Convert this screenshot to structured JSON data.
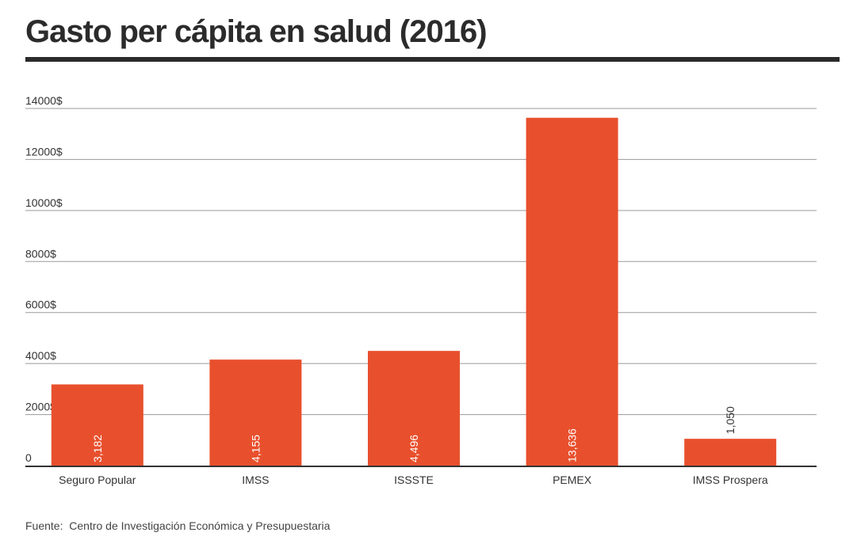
{
  "title": "Gasto per cápita en salud (2016)",
  "source": {
    "label": "Fuente:",
    "text": "Centro de Investigación Económica y Presupuestaria"
  },
  "colors": {
    "bar": "#e8502d",
    "grid": "#9a9a9a",
    "axis": "#333333",
    "title": "#2b2b2b"
  },
  "chart_data": {
    "type": "bar",
    "title": "Gasto per cápita en salud (2016)",
    "xlabel": "",
    "ylabel": "",
    "categories": [
      "Seguro Popular",
      "IMSS",
      "ISSSTE",
      "PEMEX",
      "IMSS Prospera"
    ],
    "values": [
      3182,
      4155,
      4496,
      13636,
      1050
    ],
    "value_labels": [
      "3,182",
      "4,155",
      "4,496",
      "13,636",
      "1,050"
    ],
    "ylim": [
      0,
      14000
    ],
    "yticks": [
      0,
      2000,
      4000,
      6000,
      8000,
      10000,
      12000,
      14000
    ],
    "ytick_labels": [
      "0",
      "2000$",
      "4000$",
      "6000$",
      "8000$",
      "10000$",
      "12000$",
      "14000$"
    ],
    "grid": true,
    "legend": "none"
  }
}
